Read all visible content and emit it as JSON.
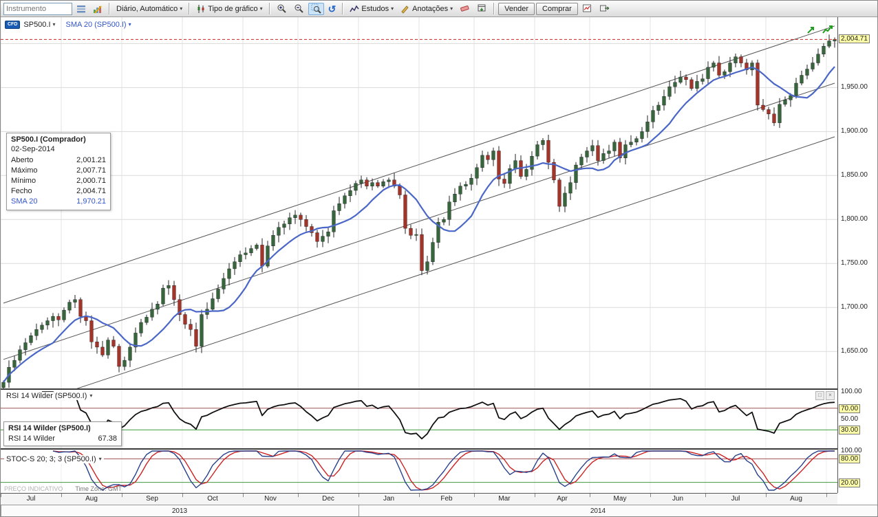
{
  "icons": {
    "caret": "▾",
    "undo": "↺",
    "minimize": "□",
    "close": "×"
  },
  "toolbar": {
    "instrument_placeholder": "Instrumento",
    "period_label": "Diário, Automático",
    "chart_type_label": "Tipo de gráfico",
    "studies_label": "Estudos",
    "annotations_label": "Anotações",
    "sell_label": "Vender",
    "buy_label": "Comprar"
  },
  "chart": {
    "legend": {
      "cfd_badge": "CFD",
      "instrument": "SP500.I",
      "overlay": "SMA 20 (SP500.I)"
    },
    "tooltip": {
      "title": "SP500.I (Comprador)",
      "date": "02-Sep-2014",
      "rows": [
        {
          "label": "Aberto",
          "value": "2,001.21"
        },
        {
          "label": "Máximo",
          "value": "2,007.71"
        },
        {
          "label": "Mínimo",
          "value": "2,000.71"
        },
        {
          "label": "Fecho",
          "value": "2,004.71"
        },
        {
          "label": "SMA 20",
          "value": "1,970.21"
        }
      ]
    },
    "current_price_label": "2,004.71",
    "price_axis_labels": [
      {
        "text": "1,950.00",
        "price": 1950
      },
      {
        "text": "1,900.00",
        "price": 1900
      },
      {
        "text": "1,850.00",
        "price": 1850
      },
      {
        "text": "1,800.00",
        "price": 1800
      },
      {
        "text": "1,750.00",
        "price": 1750
      },
      {
        "text": "1,700.00",
        "price": 1700
      },
      {
        "text": "1,650.00",
        "price": 1650
      }
    ]
  },
  "rsi_panel": {
    "label": "RSI 14 Wilder (SP500.I)",
    "axis_labels": [
      {
        "text": "100.00",
        "value": 100,
        "hl": false
      },
      {
        "text": "70.00",
        "value": 70,
        "hl": true
      },
      {
        "text": "50.00",
        "value": 50,
        "hl": false
      },
      {
        "text": "30.00",
        "value": 30,
        "hl": true
      }
    ],
    "tooltip": {
      "title": "RSI 14 Wilder (SP500.I)",
      "label": "RSI 14 Wilder",
      "value": "67.38"
    }
  },
  "stoch_panel": {
    "label": "STOC-S 20; 3; 3 (SP500.I)",
    "axis_labels": [
      {
        "text": "100.00",
        "value": 100,
        "hl": false
      },
      {
        "text": "80.00",
        "value": 80,
        "hl": true
      },
      {
        "text": "20.00",
        "value": 20,
        "hl": true
      }
    ]
  },
  "footer": {
    "indicative": "PREÇO INDICATIVO",
    "timezone": "Time Zone: GMT"
  },
  "time_axis": {
    "months": [
      "Jul",
      "Aug",
      "Sep",
      "Oct",
      "Nov",
      "Dec",
      "Jan",
      "Feb",
      "Mar",
      "Apr",
      "May",
      "Jun",
      "Jul",
      "Aug"
    ],
    "years": [
      {
        "label": "2013",
        "from": 0,
        "to": 65
      },
      {
        "label": "2014",
        "from": 65,
        "to": 152
      }
    ]
  },
  "chart_data": {
    "type": "candlestick",
    "title": "SP500.I daily candles with SMA 20 overlay, regression channel, RSI 14 Wilder and STOC-S 20;3;3 sub-panels, Jul 2013 - Sep 2014",
    "ylim": [
      1608,
      2030
    ],
    "price_gridlines": [
      1650,
      1700,
      1750,
      1800,
      1850,
      1900,
      1950,
      2000
    ],
    "current_price": 2004.71,
    "month_starts": [
      0,
      11,
      22,
      33,
      44,
      54,
      65,
      76,
      86,
      97,
      107,
      118,
      128,
      139,
      150
    ],
    "closes": [
      1615,
      1632,
      1640,
      1652,
      1660,
      1668,
      1675,
      1680,
      1685,
      1690,
      1686,
      1697,
      1706,
      1709,
      1690,
      1685,
      1661,
      1655,
      1646,
      1663,
      1656,
      1633,
      1640,
      1655,
      1671,
      1683,
      1689,
      1698,
      1704,
      1722,
      1725,
      1709,
      1692,
      1681,
      1675,
      1656,
      1692,
      1698,
      1710,
      1721,
      1733,
      1744,
      1752,
      1760,
      1762,
      1767,
      1771,
      1747,
      1770,
      1782,
      1791,
      1795,
      1802,
      1805,
      1800,
      1792,
      1785,
      1775,
      1781,
      1786,
      1810,
      1818,
      1827,
      1833,
      1841,
      1845,
      1838,
      1842,
      1838,
      1843,
      1845,
      1838,
      1828,
      1790,
      1782,
      1783,
      1742,
      1752,
      1774,
      1797,
      1800,
      1820,
      1829,
      1838,
      1840,
      1847,
      1859,
      1873,
      1868,
      1878,
      1846,
      1841,
      1858,
      1867,
      1849,
      1857,
      1872,
      1885,
      1890,
      1865,
      1845,
      1815,
      1830,
      1842,
      1862,
      1871,
      1878,
      1884,
      1867,
      1875,
      1878,
      1888,
      1870,
      1885,
      1888,
      1892,
      1900,
      1911,
      1924,
      1930,
      1940,
      1951,
      1956,
      1962,
      1959,
      1949,
      1957,
      1960,
      1973,
      1978,
      1964,
      1968,
      1978,
      1985,
      1978,
      1970,
      1978,
      1930,
      1925,
      1920,
      1910,
      1931,
      1936,
      1941,
      1955,
      1964,
      1971,
      1978,
      1988,
      1997,
      2003,
      2004.71
    ],
    "sma_period_candles": 10,
    "channel": {
      "upper": [
        [
          0,
          1705
        ],
        [
          151,
          2020
        ]
      ],
      "middle": [
        [
          0,
          1641
        ],
        [
          151,
          1955
        ]
      ],
      "lower": [
        [
          0,
          1580
        ],
        [
          151,
          1894
        ]
      ]
    },
    "rsi": {
      "period_candles": 7,
      "levels": [
        70,
        30
      ],
      "last_value": 67.38
    },
    "stochastic": {
      "k_period": 10,
      "k_smooth": 3,
      "d_period": 3,
      "levels": [
        80,
        20
      ]
    }
  }
}
